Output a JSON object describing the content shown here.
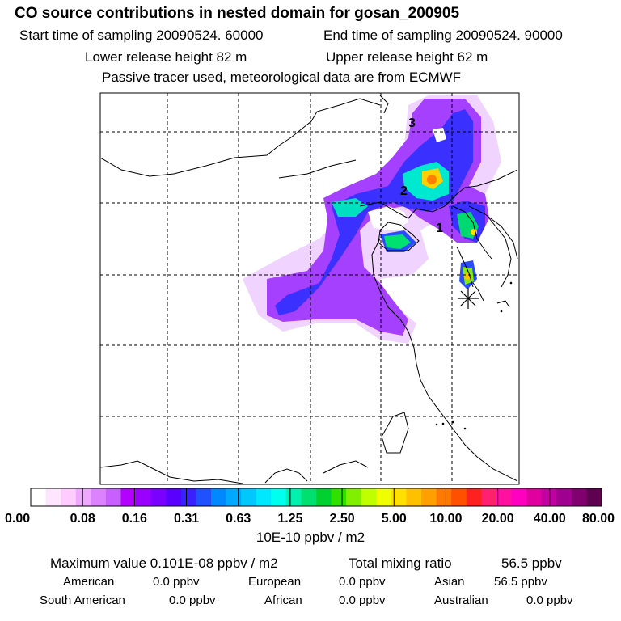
{
  "header": {
    "title": "CO  source contributions in nested domain for gosan_200905",
    "start_time": "Start time of sampling 20090524. 60000",
    "end_time": "End time of sampling 20090524. 90000",
    "lower_release": "Lower release height   82 m",
    "upper_release": "Upper release height   62 m",
    "tracer_note": "Passive tracer used, meteorological data are from ECMWF"
  },
  "map": {
    "labels": [
      {
        "text": "1"
      },
      {
        "text": "2"
      },
      {
        "text": "3"
      }
    ],
    "receptor_marker": "asterisk-icon"
  },
  "chart_data": {
    "type": "heatmap",
    "title": "CO  source contributions in nested domain for gosan_200905",
    "colorbar": {
      "tick_labels": [
        "0.00",
        "0.08",
        "0.16",
        "0.31",
        "0.63",
        "1.25",
        "2.50",
        "5.00",
        "10.00",
        "20.00",
        "40.00",
        "80.00"
      ],
      "unit": "10E-10 ppbv / m2",
      "colors": [
        "#ffffff",
        "#ffe6ff",
        "#ffccff",
        "#f0a8ff",
        "#dc82ff",
        "#c860ff",
        "#b400ff",
        "#9a00ff",
        "#7a00ff",
        "#5a00ff",
        "#3a20ff",
        "#2050ff",
        "#0088ff",
        "#00a8ff",
        "#00c8ff",
        "#00e8ff",
        "#00ffee",
        "#00f0b0",
        "#00e070",
        "#00d030",
        "#30e000",
        "#80f000",
        "#c0ff00",
        "#f0ff00",
        "#ffe000",
        "#ffc000",
        "#ffa000",
        "#ff7800",
        "#ff5000",
        "#ff2020",
        "#ff2070",
        "#ff10a0",
        "#ff00c0",
        "#e000a0",
        "#c000a0",
        "#a00090",
        "#800070",
        "#600050"
      ]
    },
    "max_value": "0.101E-08 ppbv / m2",
    "total_mixing_ratio": "56.5 ppbv"
  },
  "summary": {
    "maximum_label": "Maximum value  0.101E-08 ppbv / m2",
    "total_label": "Total mixing ratio",
    "total_value": "56.5 ppbv",
    "regions": [
      {
        "name": "American",
        "value": "0.0 ppbv"
      },
      {
        "name": "European",
        "value": "0.0 ppbv"
      },
      {
        "name": "Asian",
        "value": "56.5 ppbv"
      },
      {
        "name": "South American",
        "value": "0.0 ppbv"
      },
      {
        "name": "African",
        "value": "0.0 ppbv"
      },
      {
        "name": "Australian",
        "value": "0.0 ppbv"
      }
    ]
  }
}
